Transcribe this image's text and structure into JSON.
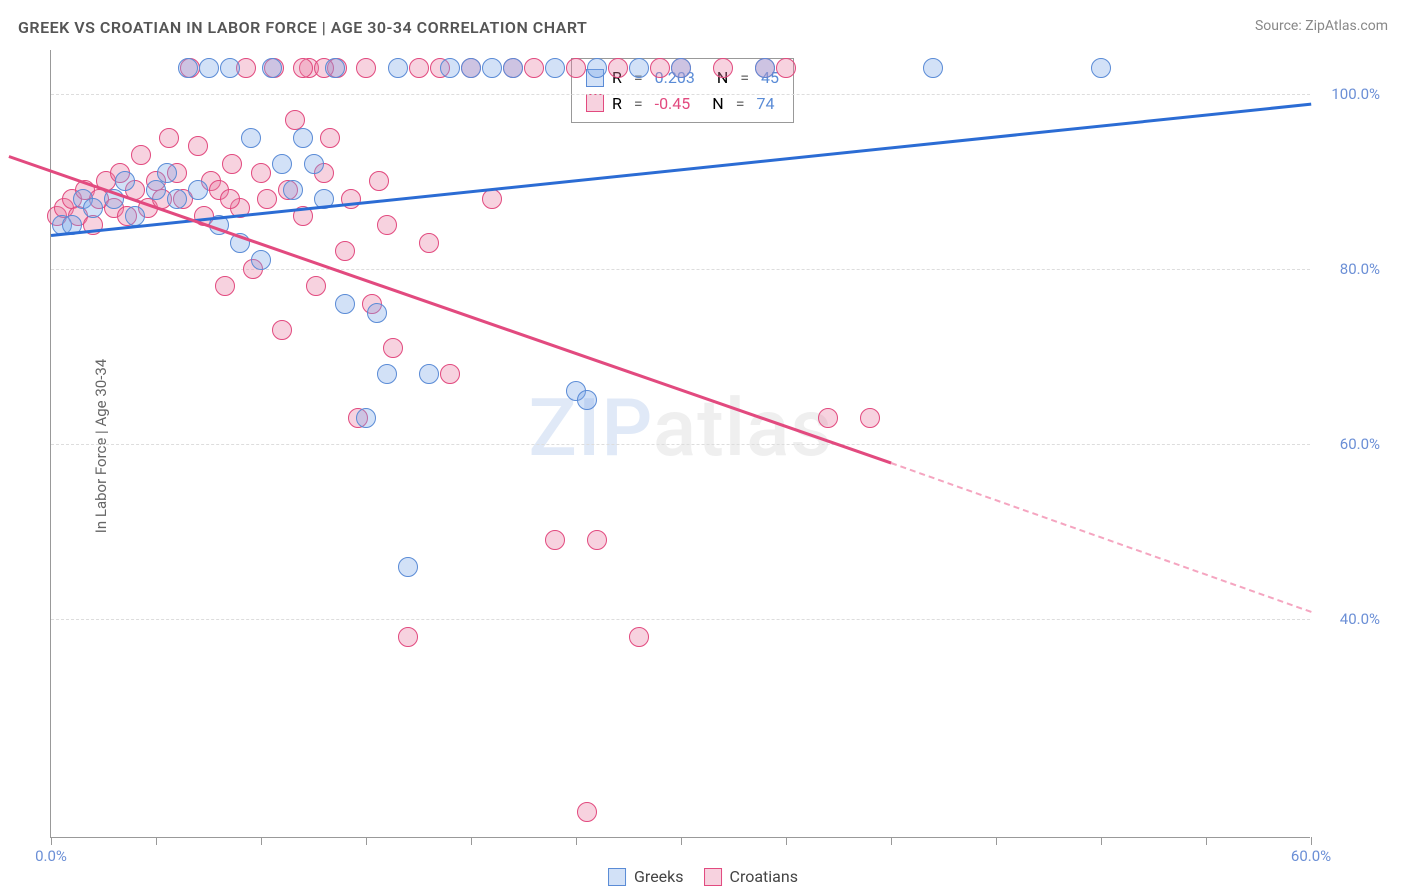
{
  "title": "GREEK VS CROATIAN IN LABOR FORCE | AGE 30-34 CORRELATION CHART",
  "source": "Source: ZipAtlas.com",
  "ylabel": "In Labor Force | Age 30-34",
  "watermark": {
    "a": "ZIP",
    "b": "atlas"
  },
  "chart": {
    "type": "scatter",
    "xlim": [
      0,
      60
    ],
    "ylim": [
      15,
      105
    ],
    "x_ticks": [
      0,
      5,
      10,
      15,
      20,
      25,
      30,
      35,
      40,
      45,
      50,
      55,
      60
    ],
    "x_labels": {
      "0": "0.0%",
      "60": "60.0%"
    },
    "y_gridlines": [
      40,
      60,
      80,
      100
    ],
    "y_labels": {
      "40": "40.0%",
      "60": "60.0%",
      "80": "80.0%",
      "100": "100.0%"
    },
    "background_color": "#ffffff",
    "grid_color": "#dddddd",
    "axis_color": "#999999"
  },
  "series": {
    "greeks": {
      "label": "Greeks",
      "color_fill": "rgba(126,169,232,0.35)",
      "color_stroke": "#5a8bd6",
      "r": 0.203,
      "n": 45,
      "trend": {
        "x1": 0,
        "y1": 84,
        "x2": 60,
        "y2": 99,
        "color": "#2b6cd4"
      },
      "points": [
        [
          0.5,
          85
        ],
        [
          1,
          85
        ],
        [
          1.5,
          88
        ],
        [
          2,
          87
        ],
        [
          3,
          88
        ],
        [
          3.5,
          90
        ],
        [
          4,
          86
        ],
        [
          5,
          89
        ],
        [
          5.5,
          91
        ],
        [
          6,
          88
        ],
        [
          6.5,
          103
        ],
        [
          7,
          89
        ],
        [
          7.5,
          103
        ],
        [
          8,
          85
        ],
        [
          8.5,
          103
        ],
        [
          9,
          83
        ],
        [
          9.5,
          95
        ],
        [
          10,
          81
        ],
        [
          10.5,
          103
        ],
        [
          11,
          92
        ],
        [
          11.5,
          89
        ],
        [
          12,
          95
        ],
        [
          12.5,
          92
        ],
        [
          13,
          88
        ],
        [
          13.5,
          103
        ],
        [
          14,
          76
        ],
        [
          15,
          63
        ],
        [
          15.5,
          75
        ],
        [
          16,
          68
        ],
        [
          16.5,
          103
        ],
        [
          17,
          46
        ],
        [
          18,
          68
        ],
        [
          19,
          103
        ],
        [
          20,
          103
        ],
        [
          21,
          103
        ],
        [
          22,
          103
        ],
        [
          24,
          103
        ],
        [
          25,
          66
        ],
        [
          25.5,
          65
        ],
        [
          26,
          103
        ],
        [
          28,
          103
        ],
        [
          30,
          103
        ],
        [
          42,
          103
        ],
        [
          50,
          103
        ],
        [
          34,
          103
        ]
      ]
    },
    "croatians": {
      "label": "Croatians",
      "color_fill": "rgba(232,126,164,0.35)",
      "color_stroke": "#e24a7f",
      "r": -0.45,
      "n": 74,
      "trend": {
        "x1": -2,
        "y1": 93,
        "x2": 40,
        "y2": 58,
        "color": "#e24a7f"
      },
      "trend_dash": {
        "x1": 40,
        "y1": 58,
        "x2": 60,
        "y2": 41,
        "color": "#f5a5c0"
      },
      "points": [
        [
          0.3,
          86
        ],
        [
          0.6,
          87
        ],
        [
          1,
          88
        ],
        [
          1.3,
          86
        ],
        [
          1.6,
          89
        ],
        [
          2,
          85
        ],
        [
          2.3,
          88
        ],
        [
          2.6,
          90
        ],
        [
          3,
          87
        ],
        [
          3.3,
          91
        ],
        [
          3.6,
          86
        ],
        [
          4,
          89
        ],
        [
          4.3,
          93
        ],
        [
          4.6,
          87
        ],
        [
          5,
          90
        ],
        [
          5.3,
          88
        ],
        [
          5.6,
          95
        ],
        [
          6,
          91
        ],
        [
          6.3,
          88
        ],
        [
          6.6,
          103
        ],
        [
          7,
          94
        ],
        [
          7.3,
          86
        ],
        [
          7.6,
          90
        ],
        [
          8,
          89
        ],
        [
          8.3,
          78
        ],
        [
          8.6,
          92
        ],
        [
          9,
          87
        ],
        [
          9.3,
          103
        ],
        [
          9.6,
          80
        ],
        [
          10,
          91
        ],
        [
          10.3,
          88
        ],
        [
          10.6,
          103
        ],
        [
          11,
          73
        ],
        [
          11.3,
          89
        ],
        [
          11.6,
          97
        ],
        [
          12,
          86
        ],
        [
          12.3,
          103
        ],
        [
          12.6,
          78
        ],
        [
          13,
          91
        ],
        [
          13.3,
          95
        ],
        [
          13.6,
          103
        ],
        [
          14,
          82
        ],
        [
          14.3,
          88
        ],
        [
          14.6,
          63
        ],
        [
          15,
          103
        ],
        [
          15.3,
          76
        ],
        [
          15.6,
          90
        ],
        [
          16,
          85
        ],
        [
          16.3,
          71
        ],
        [
          17,
          38
        ],
        [
          17.5,
          103
        ],
        [
          18,
          83
        ],
        [
          18.5,
          103
        ],
        [
          19,
          68
        ],
        [
          20,
          103
        ],
        [
          21,
          88
        ],
        [
          22,
          103
        ],
        [
          23,
          103
        ],
        [
          24,
          49
        ],
        [
          25,
          103
        ],
        [
          26,
          49
        ],
        [
          27,
          103
        ],
        [
          28,
          38
        ],
        [
          29,
          103
        ],
        [
          30,
          103
        ],
        [
          32,
          103
        ],
        [
          34,
          103
        ],
        [
          35,
          103
        ],
        [
          37,
          63
        ],
        [
          39,
          63
        ],
        [
          12,
          103
        ],
        [
          13,
          103
        ],
        [
          25.5,
          18
        ],
        [
          8.5,
          88
        ]
      ]
    }
  },
  "legend": {
    "r_sym": "R",
    "n_sym": "N",
    "eq": "="
  },
  "bottom_legend": {
    "items": [
      "Greeks",
      "Croatians"
    ]
  }
}
